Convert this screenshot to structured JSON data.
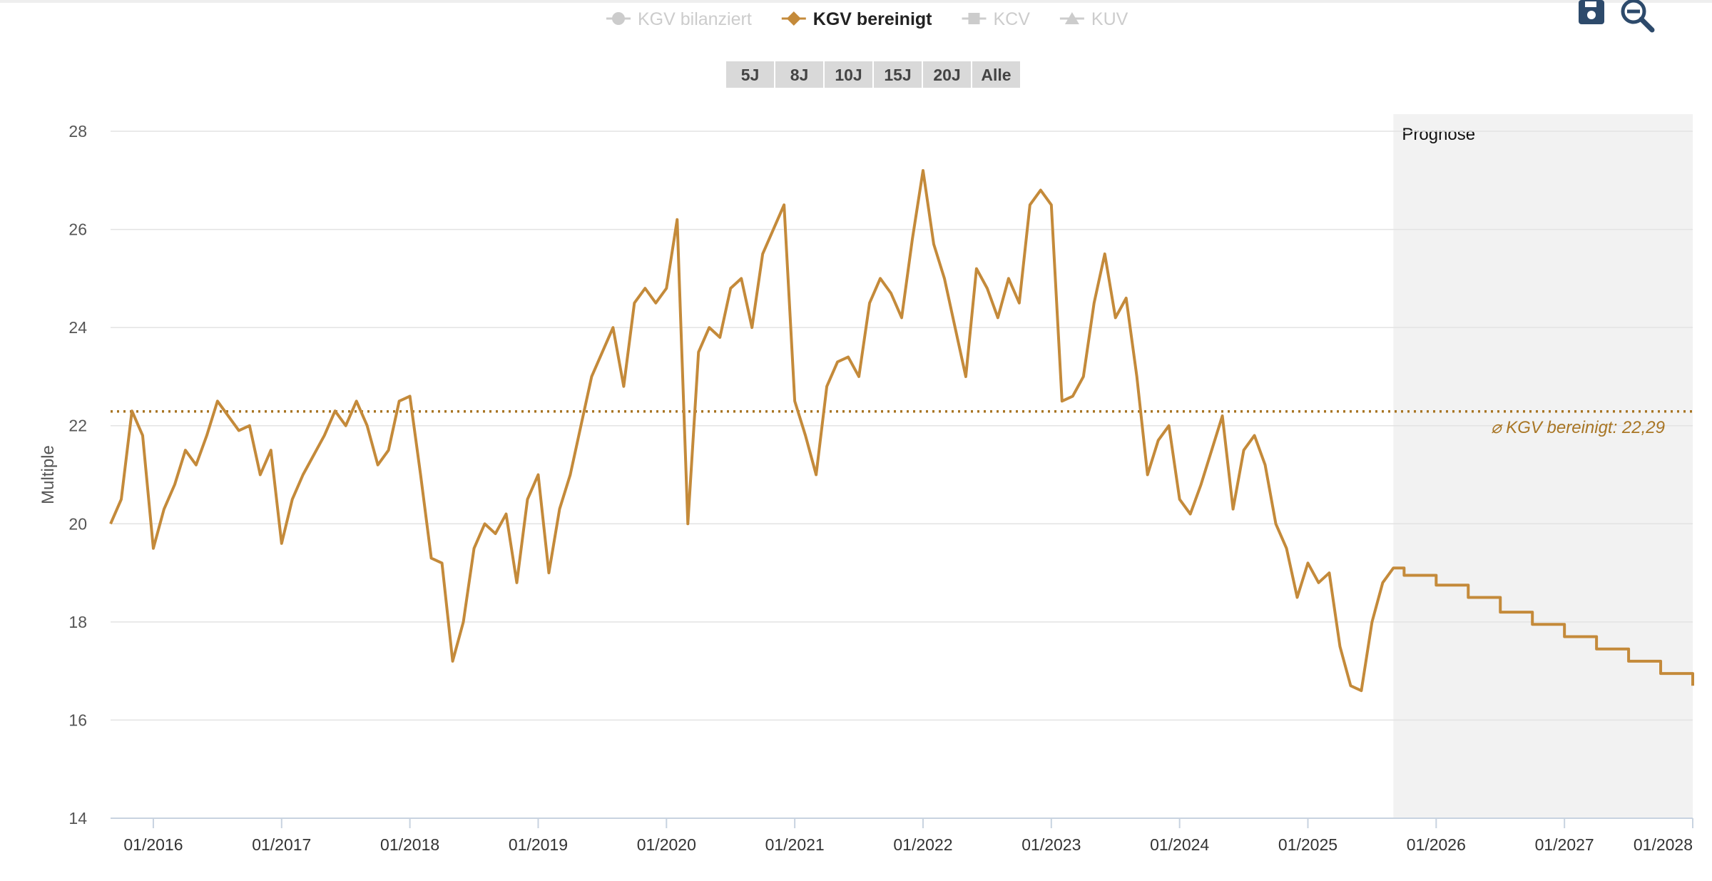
{
  "chart_data": {
    "type": "line",
    "legend": [
      {
        "name": "KGV bilanziert",
        "color": "#cccccc",
        "marker": "circle",
        "active": false
      },
      {
        "name": "KGV bereinigt",
        "color": "#c48a3a",
        "marker": "diamond",
        "active": true
      },
      {
        "name": "KCV",
        "color": "#cccccc",
        "marker": "square",
        "active": false
      },
      {
        "name": "KUV",
        "color": "#cccccc",
        "marker": "triangle",
        "active": false
      }
    ],
    "range_buttons": [
      "5J",
      "8J",
      "10J",
      "15J",
      "20J",
      "Alle"
    ],
    "y_label": "Multiple",
    "forecast_label": "Prognose",
    "forecast_start": "09/2025",
    "average": {
      "value": 22.29,
      "label": "⌀ KGV bereinigt: 22,29",
      "color": "#a87524"
    },
    "x": [
      "09/2015",
      "10/2015",
      "11/2015",
      "12/2015",
      "01/2016",
      "02/2016",
      "03/2016",
      "04/2016",
      "05/2016",
      "06/2016",
      "07/2016",
      "08/2016",
      "09/2016",
      "10/2016",
      "11/2016",
      "12/2016",
      "01/2017",
      "02/2017",
      "03/2017",
      "04/2017",
      "05/2017",
      "06/2017",
      "07/2017",
      "08/2017",
      "09/2017",
      "10/2017",
      "11/2017",
      "12/2017",
      "01/2018",
      "02/2018",
      "03/2018",
      "04/2018",
      "05/2018",
      "06/2018",
      "07/2018",
      "08/2018",
      "09/2018",
      "10/2018",
      "11/2018",
      "12/2018",
      "01/2019",
      "02/2019",
      "03/2019",
      "04/2019",
      "05/2019",
      "06/2019",
      "07/2019",
      "08/2019",
      "09/2019",
      "10/2019",
      "11/2019",
      "12/2019",
      "01/2020",
      "02/2020",
      "03/2020",
      "04/2020",
      "05/2020",
      "06/2020",
      "07/2020",
      "08/2020",
      "09/2020",
      "10/2020",
      "11/2020",
      "12/2020",
      "01/2021",
      "02/2021",
      "03/2021",
      "04/2021",
      "05/2021",
      "06/2021",
      "07/2021",
      "08/2021",
      "09/2021",
      "10/2021",
      "11/2021",
      "12/2021",
      "01/2022",
      "02/2022",
      "03/2022",
      "04/2022",
      "05/2022",
      "06/2022",
      "07/2022",
      "08/2022",
      "09/2022",
      "10/2022",
      "11/2022",
      "12/2022",
      "01/2023",
      "02/2023",
      "03/2023",
      "04/2023",
      "05/2023",
      "06/2023",
      "07/2023",
      "08/2023",
      "09/2023",
      "10/2023",
      "11/2023",
      "12/2023",
      "01/2024",
      "02/2024",
      "03/2024",
      "04/2024",
      "05/2024",
      "06/2024",
      "07/2024",
      "08/2024",
      "09/2024",
      "10/2024",
      "11/2024",
      "12/2024",
      "01/2025",
      "02/2025",
      "03/2025",
      "04/2025",
      "05/2025",
      "06/2025",
      "07/2025",
      "08/2025",
      "09/2025",
      "10/2025",
      "11/2025",
      "12/2025",
      "01/2026",
      "02/2026",
      "03/2026",
      "04/2026",
      "05/2026",
      "06/2026",
      "07/2026",
      "08/2026",
      "09/2026",
      "10/2026",
      "11/2026",
      "12/2026",
      "01/2027",
      "02/2027",
      "03/2027",
      "04/2027",
      "05/2027",
      "06/2027",
      "07/2027",
      "08/2027",
      "09/2027",
      "10/2027",
      "11/2027",
      "12/2027",
      "01/2028"
    ],
    "series": [
      {
        "name": "KGV bereinigt",
        "color": "#c48a3a",
        "values": [
          20.0,
          20.5,
          22.3,
          21.8,
          19.5,
          20.3,
          20.8,
          21.5,
          21.2,
          21.8,
          22.5,
          22.2,
          21.9,
          22.0,
          21.0,
          21.5,
          19.6,
          20.5,
          21.0,
          21.4,
          21.8,
          22.3,
          22.0,
          22.5,
          22.0,
          21.2,
          21.5,
          22.5,
          22.6,
          21.0,
          19.3,
          19.2,
          17.2,
          18.0,
          19.5,
          20.0,
          19.8,
          20.2,
          18.8,
          20.5,
          21.0,
          19.0,
          20.3,
          21.0,
          22.0,
          23.0,
          23.5,
          24.0,
          22.8,
          24.5,
          24.8,
          24.5,
          24.8,
          26.2,
          20.0,
          23.5,
          24.0,
          23.8,
          24.8,
          25.0,
          24.0,
          25.5,
          26.0,
          26.5,
          22.5,
          21.8,
          21.0,
          22.8,
          23.3,
          23.4,
          23.0,
          24.5,
          25.0,
          24.7,
          24.2,
          25.8,
          27.2,
          25.7,
          25.0,
          24.0,
          23.0,
          25.2,
          24.8,
          24.2,
          25.0,
          24.5,
          26.5,
          26.8,
          26.5,
          22.5,
          22.6,
          23.0,
          24.5,
          25.5,
          24.2,
          24.6,
          23.0,
          21.0,
          21.7,
          22.0,
          20.5,
          20.2,
          20.8,
          21.5,
          22.2,
          20.3,
          21.5,
          21.8,
          21.2,
          20.0,
          19.5,
          18.5,
          19.2,
          18.8,
          19.0,
          17.5,
          16.7,
          16.6,
          18.0,
          18.8,
          19.1,
          18.95,
          18.95,
          18.95,
          18.75,
          18.75,
          18.75,
          18.5,
          18.5,
          18.5,
          18.2,
          18.2,
          18.2,
          17.95,
          17.95,
          17.95,
          17.7,
          17.7,
          17.7,
          17.45,
          17.45,
          17.45,
          17.2,
          17.2,
          17.2,
          16.95,
          16.95,
          16.95,
          16.7
        ]
      }
    ],
    "ylim": [
      14,
      28
    ],
    "yticks": [
      14,
      16,
      18,
      20,
      22,
      24,
      26,
      28
    ],
    "grid": true
  }
}
